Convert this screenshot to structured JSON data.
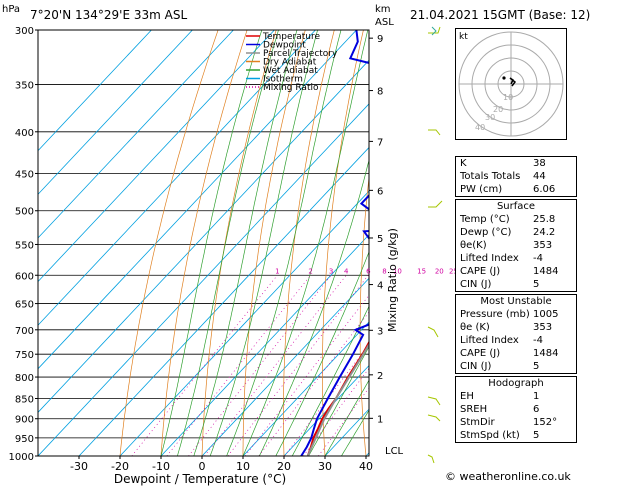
{
  "header": {
    "station": "7°20'N 134°29'E 33m ASL",
    "datetime": "21.04.2021 15GMT (Base: 12)",
    "hpa_label": "hPa",
    "km_label": "km",
    "asl_label": "ASL"
  },
  "chart_data": {
    "type": "line",
    "xlabel": "Dewpoint / Temperature (°C)",
    "ylabel": "Mixing Ratio (g/kg)",
    "x_ticks": [
      -30,
      -20,
      -10,
      0,
      10,
      20,
      30,
      40
    ],
    "pressure_levels": [
      300,
      350,
      400,
      450,
      500,
      550,
      600,
      650,
      700,
      750,
      800,
      850,
      900,
      950,
      1000
    ],
    "km_ticks": [
      "1",
      "2",
      "3",
      "4",
      "5",
      "6",
      "7",
      "8",
      "9"
    ],
    "lcl_label": "LCL",
    "mixing_ratio_labels": [
      "1",
      "2",
      "3",
      "4",
      "6",
      "8",
      "10",
      "15",
      "20",
      "25"
    ],
    "legend": [
      "Temperature",
      "Dewpoint",
      "Parcel Trajectory",
      "Dry Adiabat",
      "Wet Adiabat",
      "Isotherm",
      "Mixing Ratio"
    ],
    "series": [
      {
        "name": "Temperature",
        "color": "#dd0000",
        "points": [
          [
            1000,
            25.8
          ],
          [
            975,
            24.5
          ],
          [
            950,
            23.0
          ],
          [
            925,
            22.0
          ],
          [
            900,
            20.8
          ],
          [
            875,
            20.0
          ],
          [
            850,
            19.5
          ],
          [
            800,
            17.5
          ],
          [
            750,
            15.8
          ],
          [
            700,
            13.5
          ],
          [
            650,
            10.6
          ],
          [
            600,
            7.2
          ],
          [
            580,
            5.5
          ],
          [
            560,
            3.5
          ],
          [
            550,
            2.0
          ],
          [
            530,
            1.0
          ],
          [
            520,
            0.5
          ],
          [
            505,
            -1.5
          ],
          [
            500,
            -1.8
          ],
          [
            480,
            -3.5
          ],
          [
            460,
            -5.0
          ],
          [
            450,
            -6.0
          ],
          [
            420,
            -9.5
          ],
          [
            400,
            -12.5
          ],
          [
            380,
            -15.5
          ],
          [
            350,
            -20.0
          ],
          [
            300,
            -30.0
          ]
        ]
      },
      {
        "name": "Dewpoint",
        "color": "#0000dd",
        "points": [
          [
            1000,
            24.2
          ],
          [
            975,
            23.5
          ],
          [
            950,
            22.5
          ],
          [
            925,
            21.0
          ],
          [
            900,
            19.5
          ],
          [
            850,
            17.5
          ],
          [
            800,
            15.5
          ],
          [
            750,
            13.5
          ],
          [
            710,
            11.5
          ],
          [
            700,
            8.5
          ],
          [
            690,
            10.5
          ],
          [
            650,
            9.5
          ],
          [
            600,
            6.5
          ],
          [
            580,
            4.0
          ],
          [
            565,
            -1.0
          ],
          [
            557,
            -6.0
          ],
          [
            545,
            -8.0
          ],
          [
            530,
            -12.0
          ],
          [
            525,
            -3.0
          ],
          [
            515,
            -7.0
          ],
          [
            505,
            -12.0
          ],
          [
            502,
            -8.0
          ],
          [
            500,
            -15.0
          ],
          [
            490,
            -19.0
          ],
          [
            470,
            -19.0
          ],
          [
            450,
            -20.0
          ],
          [
            430,
            -21.0
          ],
          [
            410,
            -22.0
          ],
          [
            400,
            -24.0
          ],
          [
            380,
            -30.0
          ],
          [
            360,
            -34.0
          ],
          [
            345,
            -38.0
          ],
          [
            335,
            -42.0
          ],
          [
            325,
            -55.0
          ],
          [
            310,
            -57.0
          ],
          [
            300,
            -60.0
          ]
        ]
      },
      {
        "name": "Parcel Trajectory",
        "color": "#909090",
        "points": [
          [
            1000,
            25.8
          ],
          [
            975,
            24.7
          ],
          [
            950,
            23.6
          ],
          [
            900,
            21.3
          ],
          [
            850,
            19.5
          ],
          [
            800,
            17.8
          ],
          [
            750,
            16.0
          ],
          [
            700,
            14.0
          ],
          [
            650,
            11.8
          ],
          [
            600,
            9.2
          ],
          [
            550,
            6.4
          ],
          [
            500,
            3.0
          ],
          [
            450,
            -1.0
          ],
          [
            400,
            -6.0
          ],
          [
            350,
            -12.5
          ],
          [
            300,
            -21.0
          ]
        ]
      }
    ]
  },
  "hodograph": {
    "label": "kt",
    "ring_labels": [
      "10",
      "20",
      "30",
      "40"
    ]
  },
  "indices": [
    {
      "k": "K",
      "v": "38"
    },
    {
      "k": "Totals Totals",
      "v": "44"
    },
    {
      "k": "PW (cm)",
      "v": "6.06"
    }
  ],
  "surface": {
    "title": "Surface",
    "rows": [
      {
        "k": "Temp (°C)",
        "v": "25.8"
      },
      {
        "k": "Dewp (°C)",
        "v": "24.2"
      },
      {
        "k": "θe(K)",
        "v": "353"
      },
      {
        "k": "Lifted Index",
        "v": "-4"
      },
      {
        "k": "CAPE (J)",
        "v": "1484"
      },
      {
        "k": "CIN (J)",
        "v": "5"
      }
    ]
  },
  "most_unstable": {
    "title": "Most Unstable",
    "rows": [
      {
        "k": "Pressure (mb)",
        "v": "1005"
      },
      {
        "k": "θe (K)",
        "v": "353"
      },
      {
        "k": "Lifted Index",
        "v": "-4"
      },
      {
        "k": "CAPE (J)",
        "v": "1484"
      },
      {
        "k": "CIN (J)",
        "v": "5"
      }
    ]
  },
  "hodograph_table": {
    "title": "Hodograph",
    "rows": [
      {
        "k": "EH",
        "v": "1"
      },
      {
        "k": "SREH",
        "v": "6"
      },
      {
        "k": "StmDir",
        "v": "152°"
      },
      {
        "k": "StmSpd (kt)",
        "v": "5"
      }
    ]
  },
  "footer": "© weatheronline.co.uk"
}
